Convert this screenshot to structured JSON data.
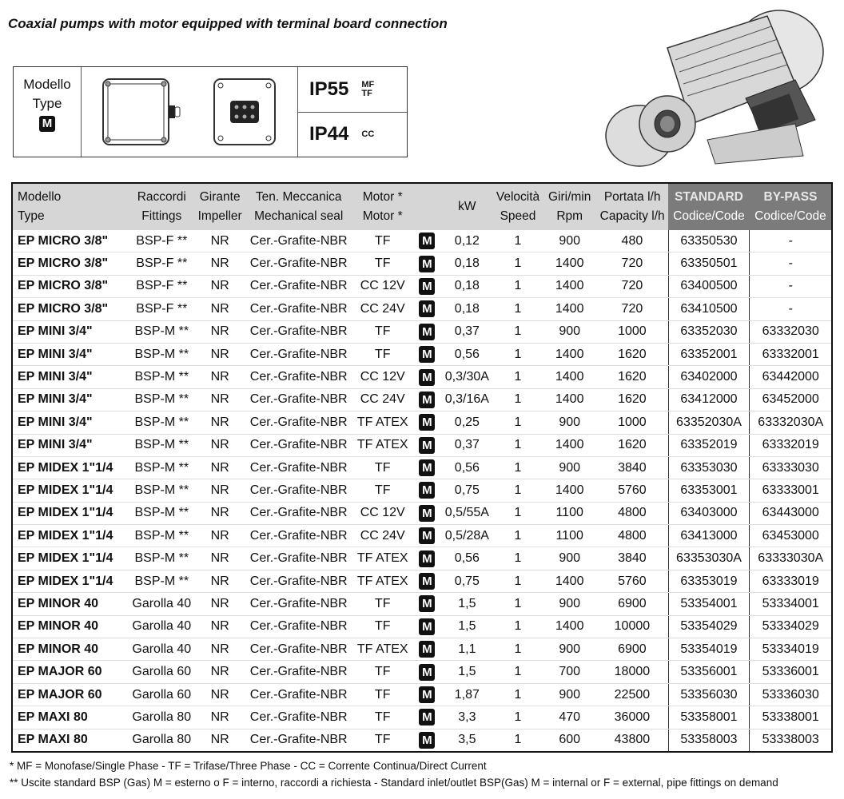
{
  "title": "Coaxial pumps with motor equipped with terminal board connection",
  "type_box": {
    "line1": "Modello",
    "line2": "Type",
    "badge": "M",
    "ip1": "IP55",
    "ip1_sub1": "MF",
    "ip1_sub2": "TF",
    "ip2": "IP44",
    "ip2_sub": "CC"
  },
  "headers": [
    [
      "Modello",
      "Type"
    ],
    [
      "Raccordi",
      "Fittings"
    ],
    [
      "Girante",
      "Impeller"
    ],
    [
      "Ten. Meccanica",
      "Mechanical seal"
    ],
    [
      "Motor *",
      "Motor *"
    ],
    [
      "",
      ""
    ],
    [
      "kW",
      ""
    ],
    [
      "Velocità",
      "Speed"
    ],
    [
      "Giri/min",
      "Rpm"
    ],
    [
      "Portata l/h",
      "Capacity l/h"
    ],
    [
      "STANDARD",
      "Codice/Code"
    ],
    [
      "BY-PASS",
      "Codice/Code"
    ]
  ],
  "rows": [
    [
      "EP MICRO 3/8\"",
      "BSP-F **",
      "NR",
      "Cer.-Grafite-NBR",
      "TF",
      "M",
      "0,12",
      "1",
      "900",
      "480",
      "63350530",
      "-"
    ],
    [
      "EP MICRO 3/8\"",
      "BSP-F **",
      "NR",
      "Cer.-Grafite-NBR",
      "TF",
      "M",
      "0,18",
      "1",
      "1400",
      "720",
      "63350501",
      "-"
    ],
    [
      "EP MICRO 3/8\"",
      "BSP-F **",
      "NR",
      "Cer.-Grafite-NBR",
      "CC 12V",
      "M",
      "0,18",
      "1",
      "1400",
      "720",
      "63400500",
      "-"
    ],
    [
      "EP MICRO 3/8\"",
      "BSP-F **",
      "NR",
      "Cer.-Grafite-NBR",
      "CC 24V",
      "M",
      "0,18",
      "1",
      "1400",
      "720",
      "63410500",
      "-"
    ],
    [
      "EP MINI 3/4\"",
      "BSP-M **",
      "NR",
      "Cer.-Grafite-NBR",
      "TF",
      "M",
      "0,37",
      "1",
      "900",
      "1000",
      "63352030",
      "63332030"
    ],
    [
      "EP MINI 3/4\"",
      "BSP-M **",
      "NR",
      "Cer.-Grafite-NBR",
      "TF",
      "M",
      "0,56",
      "1",
      "1400",
      "1620",
      "63352001",
      "63332001"
    ],
    [
      "EP MINI 3/4\"",
      "BSP-M **",
      "NR",
      "Cer.-Grafite-NBR",
      "CC 12V",
      "M",
      "0,3/30A",
      "1",
      "1400",
      "1620",
      "63402000",
      "63442000"
    ],
    [
      "EP MINI 3/4\"",
      "BSP-M **",
      "NR",
      "Cer.-Grafite-NBR",
      "CC 24V",
      "M",
      "0,3/16A",
      "1",
      "1400",
      "1620",
      "63412000",
      "63452000"
    ],
    [
      "EP MINI 3/4\"",
      "BSP-M **",
      "NR",
      "Cer.-Grafite-NBR",
      "TF ATEX",
      "M",
      "0,25",
      "1",
      "900",
      "1000",
      "63352030A",
      "63332030A"
    ],
    [
      "EP MINI 3/4\"",
      "BSP-M **",
      "NR",
      "Cer.-Grafite-NBR",
      "TF ATEX",
      "M",
      "0,37",
      "1",
      "1400",
      "1620",
      "63352019",
      "63332019"
    ],
    [
      "EP MIDEX 1\"1/4",
      "BSP-M **",
      "NR",
      "Cer.-Grafite-NBR",
      "TF",
      "M",
      "0,56",
      "1",
      "900",
      "3840",
      "63353030",
      "63333030"
    ],
    [
      "EP MIDEX 1\"1/4",
      "BSP-M **",
      "NR",
      "Cer.-Grafite-NBR",
      "TF",
      "M",
      "0,75",
      "1",
      "1400",
      "5760",
      "63353001",
      "63333001"
    ],
    [
      "EP MIDEX 1\"1/4",
      "BSP-M **",
      "NR",
      "Cer.-Grafite-NBR",
      "CC 12V",
      "M",
      "0,5/55A",
      "1",
      "1100",
      "4800",
      "63403000",
      "63443000"
    ],
    [
      "EP MIDEX 1\"1/4",
      "BSP-M **",
      "NR",
      "Cer.-Grafite-NBR",
      "CC 24V",
      "M",
      "0,5/28A",
      "1",
      "1100",
      "4800",
      "63413000",
      "63453000"
    ],
    [
      "EP MIDEX 1\"1/4",
      "BSP-M **",
      "NR",
      "Cer.-Grafite-NBR",
      "TF ATEX",
      "M",
      "0,56",
      "1",
      "900",
      "3840",
      "63353030A",
      "63333030A"
    ],
    [
      "EP MIDEX 1\"1/4",
      "BSP-M **",
      "NR",
      "Cer.-Grafite-NBR",
      "TF ATEX",
      "M",
      "0,75",
      "1",
      "1400",
      "5760",
      "63353019",
      "63333019"
    ],
    [
      "EP MINOR 40",
      "Garolla 40",
      "NR",
      "Cer.-Grafite-NBR",
      "TF",
      "M",
      "1,5",
      "1",
      "900",
      "6900",
      "53354001",
      "53334001"
    ],
    [
      "EP MINOR 40",
      "Garolla 40",
      "NR",
      "Cer.-Grafite-NBR",
      "TF",
      "M",
      "1,5",
      "1",
      "1400",
      "10000",
      "53354029",
      "53334029"
    ],
    [
      "EP MINOR 40",
      "Garolla 40",
      "NR",
      "Cer.-Grafite-NBR",
      "TF ATEX",
      "M",
      "1,1",
      "1",
      "900",
      "6900",
      "53354019",
      "53334019"
    ],
    [
      "EP MAJOR 60",
      "Garolla 60",
      "NR",
      "Cer.-Grafite-NBR",
      "TF",
      "M",
      "1,5",
      "1",
      "700",
      "18000",
      "53356001",
      "53336001"
    ],
    [
      "EP MAJOR 60",
      "Garolla 60",
      "NR",
      "Cer.-Grafite-NBR",
      "TF",
      "M",
      "1,87",
      "1",
      "900",
      "22500",
      "53356030",
      "53336030"
    ],
    [
      "EP MAXI 80",
      "Garolla 80",
      "NR",
      "Cer.-Grafite-NBR",
      "TF",
      "M",
      "3,3",
      "1",
      "470",
      "36000",
      "53358001",
      "53338001"
    ],
    [
      "EP MAXI 80",
      "Garolla 80",
      "NR",
      "Cer.-Grafite-NBR",
      "TF",
      "M",
      "3,5",
      "1",
      "600",
      "43800",
      "53358003",
      "53338003"
    ]
  ],
  "notes": [
    "* MF = Monofase/Single Phase - TF = Trifase/Three Phase - CC = Corrente Continua/Direct Current",
    "** Uscite standard BSP (Gas) M = esterno o F = interno, raccordi a richiesta - Standard inlet/outlet BSP(Gas) M = internal or F = external, pipe fittings on demand"
  ]
}
